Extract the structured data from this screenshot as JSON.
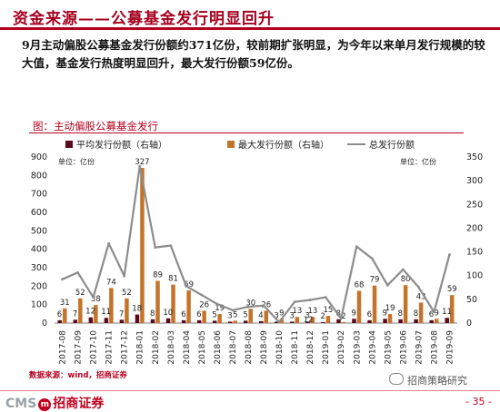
{
  "header": {
    "title": "资金来源——公募基金发行明显回升",
    "summary": "9月主动偏股公募基金发行份额约371亿份，较前期扩张明显，为今年以来单月发行规模的较大值，基金发行热度明显回升，最大发行份额59亿份。"
  },
  "chart_heading": "图：主动偏股公募基金发行",
  "source_note": "数据来源：wind，招商证券",
  "footer": {
    "logo_text": "CMS",
    "logo_mark": "m",
    "logo_cn": "招商证券",
    "watermark": "招商策略研究",
    "page": "- 35 -"
  },
  "colors": {
    "avg_bar": "#5c0b1c",
    "max_bar": "#c4742a",
    "total_line": "#8c8c8c",
    "brand_red": "#b5001e"
  },
  "chart_data": {
    "type": "bar",
    "categories": [
      "2017-08",
      "2017-09",
      "2017-10",
      "2017-11",
      "2017-12",
      "2018-01",
      "2018-02",
      "2018-03",
      "2018-04",
      "2018-05",
      "2018-06",
      "2018-07",
      "2018-08",
      "2018-09",
      "2018-10",
      "2018-11",
      "2018-12",
      "2019-01",
      "2019-02",
      "2019-03",
      "2019-04",
      "2019-05",
      "2019-06",
      "2019-07",
      "2019-08",
      "2019-09"
    ],
    "series": [
      {
        "name": "平均发行份额（右轴）",
        "kind": "bar",
        "axis": "right",
        "values": [
          6,
          7,
          12,
          11,
          7,
          18,
          8,
          10,
          6,
          6,
          5,
          3,
          5,
          4,
          3,
          3,
          3,
          2,
          8,
          9,
          6,
          9,
          8,
          8,
          6,
          11
        ],
        "labels": [
          "6",
          "7",
          "12",
          "11",
          "7",
          "18",
          "8",
          "10",
          "6",
          "6",
          "5",
          "3",
          "5",
          "4",
          "3",
          "3",
          "3",
          "2",
          "8",
          "9",
          "6",
          "9",
          "8",
          "8",
          "6",
          "11"
        ]
      },
      {
        "name": "最大发行份额（右轴）",
        "kind": "bar",
        "axis": "right",
        "values": [
          31,
          52,
          38,
          74,
          52,
          327,
          89,
          81,
          69,
          26,
          19,
          5,
          30,
          26,
          9,
          13,
          13,
          15,
          2,
          68,
          79,
          19,
          80,
          43,
          9,
          59
        ],
        "labels": [
          "31",
          "52",
          "38",
          "74",
          "52",
          "327",
          "89",
          "81",
          "69",
          "26",
          "19",
          "5",
          "30",
          "26",
          "9",
          "13",
          "13",
          "15",
          "2",
          "68",
          "79",
          "19",
          "80",
          "43",
          "9",
          "59"
        ]
      },
      {
        "name": "总发行份额",
        "kind": "line",
        "axis": "left",
        "values": [
          237,
          274,
          140,
          432,
          255,
          850,
          410,
          420,
          200,
          152,
          103,
          70,
          88,
          95,
          5,
          115,
          125,
          140,
          25,
          415,
          350,
          205,
          290,
          195,
          60,
          371
        ]
      }
    ],
    "small_labels": [
      "12"
    ],
    "small_labels_index": [
      16
    ],
    "unit_left": "单位：亿份",
    "unit_right": "单位：亿份",
    "ylim_left": [
      0,
      900
    ],
    "yticks_left": [
      0,
      100,
      200,
      300,
      400,
      500,
      600,
      700,
      800,
      900
    ],
    "ylim_right": [
      0,
      350
    ],
    "yticks_right": [
      0,
      50,
      100,
      150,
      200,
      250,
      300,
      350
    ],
    "legend_position": "top",
    "grid": false
  }
}
